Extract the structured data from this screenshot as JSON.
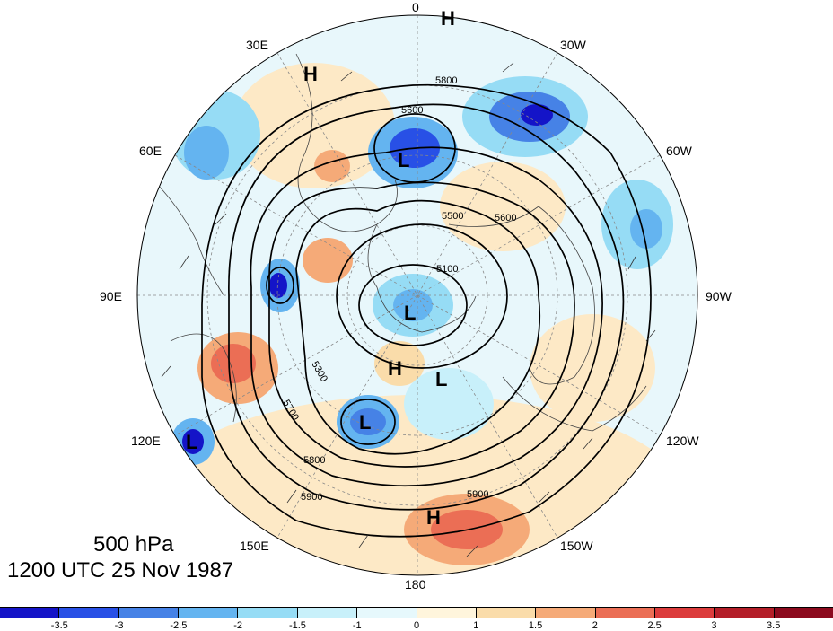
{
  "title": {
    "level": "500 hPa",
    "datetime": "1200 UTC 25 Nov 1987"
  },
  "longitude_labels": [
    "0",
    "30W",
    "60W",
    "90W",
    "120W",
    "150W",
    "180",
    "150E",
    "120E",
    "90E",
    "60E",
    "30E"
  ],
  "contour_labels": [
    "5100",
    "5300",
    "5500",
    "5600",
    "5700",
    "5800",
    "5900"
  ],
  "pressure_centers": [
    "H",
    "H",
    "H",
    "H",
    "L",
    "L",
    "L",
    "L",
    "L"
  ],
  "colorbar": {
    "ticks": [
      "-3.5",
      "-3",
      "-2.5",
      "-2",
      "-1.5",
      "-1",
      "0",
      "1",
      "1.5",
      "2",
      "2.5",
      "3",
      "3.5"
    ],
    "colors": [
      "#1414c8",
      "#2850e6",
      "#4682e6",
      "#64b4f0",
      "#96dcf5",
      "#c8f0fa",
      "#e6f8fc",
      "#fff5dc",
      "#fadcaa",
      "#f5aa78",
      "#eb6e55",
      "#dc3c3c",
      "#b41e28",
      "#8c0a1e"
    ]
  }
}
